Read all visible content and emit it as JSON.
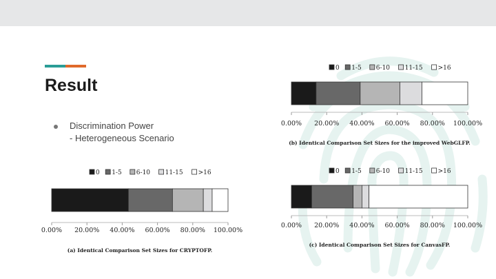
{
  "slide": {
    "title": "Result",
    "bullet": {
      "line1": "Discrimination Power",
      "line2": "- Heterogeneous Scenario"
    },
    "colors": {
      "accent_teal": "#2a9d96",
      "accent_orange": "#e06a2b",
      "background_band": "#e6e7e8",
      "watermark": "#e6f3f0"
    }
  },
  "chart_data": [
    {
      "type": "bar",
      "orientation": "horizontal-stacked",
      "title": "(a) Identical Comparison Set Sizes for CRYPTOFP.",
      "legend": [
        "0",
        "1-5",
        "6-10",
        "11-15",
        ">16"
      ],
      "legend_position": "top",
      "series_colors": [
        "#1a1a1a",
        "#686868",
        "#b5b5b5",
        "#dcdcde",
        "#ffffff"
      ],
      "values": [
        43.5,
        25,
        17.5,
        5,
        9
      ],
      "xlim": [
        0,
        100
      ],
      "xticks": [
        "0.00%",
        "20.00%",
        "40.00%",
        "60.00%",
        "80.00%",
        "100.00%"
      ]
    },
    {
      "type": "bar",
      "orientation": "horizontal-stacked",
      "title": "(b) Identical Comparison Set Sizes for the improved WebGLFP.",
      "legend": [
        "0",
        "1-5",
        "6-10",
        "11-15",
        ">16"
      ],
      "legend_position": "top",
      "series_colors": [
        "#1a1a1a",
        "#686868",
        "#b5b5b5",
        "#dcdcde",
        "#ffffff"
      ],
      "values": [
        14,
        25,
        22.5,
        12.5,
        26
      ],
      "xlim": [
        0,
        100
      ],
      "xticks": [
        "0.00%",
        "20.00%",
        "40.00%",
        "60.00%",
        "80.00%",
        "100.00%"
      ]
    },
    {
      "type": "bar",
      "orientation": "horizontal-stacked",
      "title": "(c) Identical Comparison Set Sizes for CanvasFP.",
      "legend": [
        "0",
        "1-5",
        "6-10",
        "11-15",
        ">16"
      ],
      "legend_position": "top",
      "series_colors": [
        "#1a1a1a",
        "#686868",
        "#b5b5b5",
        "#dcdcde",
        "#ffffff"
      ],
      "values": [
        11.5,
        23.5,
        5,
        4,
        56
      ],
      "xlim": [
        0,
        100
      ],
      "xticks": [
        "0.00%",
        "20.00%",
        "40.00%",
        "60.00%",
        "80.00%",
        "100.00%"
      ]
    }
  ]
}
